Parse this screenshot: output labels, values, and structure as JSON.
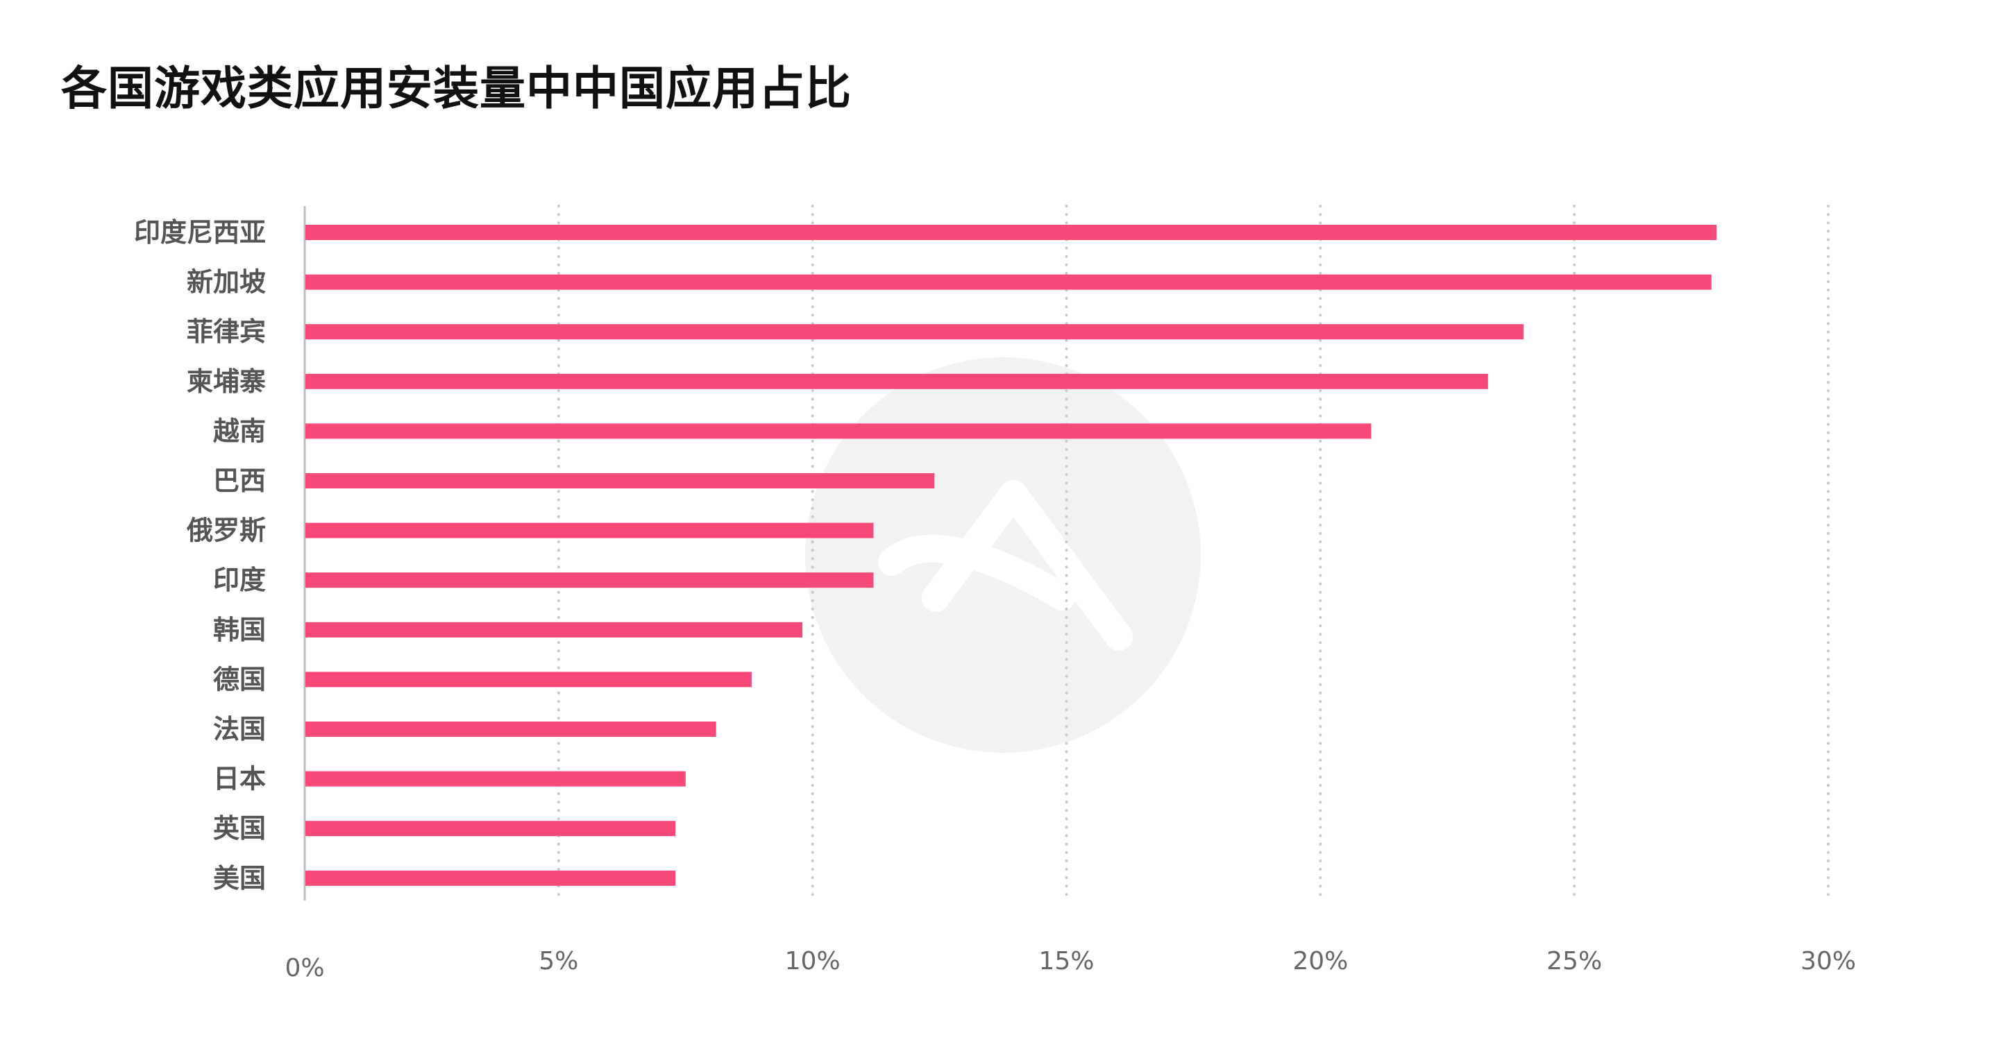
{
  "chart_data": {
    "type": "bar",
    "orientation": "horizontal",
    "title": "各国游戏类应用安装量中中国应用占比",
    "categories": [
      "印度尼西亚",
      "新加坡",
      "菲律宾",
      "柬埔寨",
      "越南",
      "巴西",
      "俄罗斯",
      "印度",
      "韩国",
      "德国",
      "法国",
      "日本",
      "英国",
      "美国"
    ],
    "values": [
      27.8,
      27.7,
      24.0,
      23.3,
      21.0,
      12.4,
      11.2,
      11.2,
      9.8,
      8.8,
      8.1,
      7.5,
      7.3,
      7.3
    ],
    "unit": "%",
    "xlim": [
      0,
      30
    ],
    "xticks": [
      "0%",
      "5%",
      "10%",
      "15%",
      "20%",
      "25%",
      "30%"
    ],
    "xlabel": "",
    "ylabel": "",
    "grid": "vertical dotted",
    "bar_color": "#f6497a",
    "grid_color": "#c8c8c8",
    "axis_color": "#bdbdbd",
    "watermark_color": "#f2f2f2"
  }
}
